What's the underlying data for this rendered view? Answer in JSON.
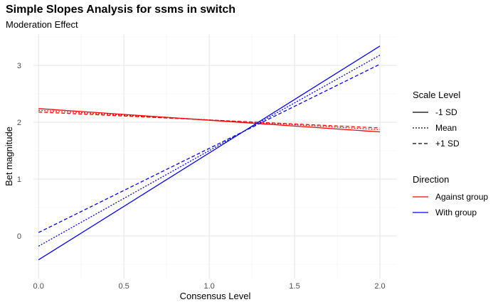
{
  "title": "Simple Slopes Analysis for ssms in switch",
  "subtitle": "Moderation Effect",
  "legend": {
    "linetype_title": "Scale Level",
    "linetype_items": [
      {
        "label": "-1 SD",
        "dash": "solid"
      },
      {
        "label": "Mean",
        "dash": "dotted"
      },
      {
        "label": "+1 SD",
        "dash": "dashed"
      }
    ],
    "color_title": "Direction",
    "color_items": [
      {
        "label": "Against group",
        "color": "#ff0000"
      },
      {
        "label": "With group",
        "color": "#0000ff"
      }
    ]
  },
  "chart_data": {
    "type": "line",
    "title": "Simple Slopes Analysis for ssms in switch",
    "subtitle": "Moderation Effect",
    "xlabel": "Consensus Level",
    "ylabel": "Bet magnitude",
    "xlim": [
      -0.03,
      2.1
    ],
    "ylim": [
      -0.75,
      3.55
    ],
    "x_ticks": [
      "0.0",
      "0.5",
      "1.0",
      "1.5",
      "2.0"
    ],
    "y_ticks": [
      "0",
      "1",
      "2",
      "3"
    ],
    "grid": true,
    "legend_position": "right",
    "series": [
      {
        "direction": "Against group",
        "level": "-1 SD",
        "color": "#ff0000",
        "dash": "solid",
        "x": [
          0,
          2
        ],
        "y": [
          2.24,
          1.83
        ]
      },
      {
        "direction": "Against group",
        "level": "Mean",
        "color": "#ff0000",
        "dash": "dotted",
        "x": [
          0,
          2
        ],
        "y": [
          2.21,
          1.87
        ]
      },
      {
        "direction": "Against group",
        "level": "+1 SD",
        "color": "#ff0000",
        "dash": "dashed",
        "x": [
          0,
          2
        ],
        "y": [
          2.18,
          1.9
        ]
      },
      {
        "direction": "With group",
        "level": "-1 SD",
        "color": "#0000ff",
        "dash": "solid",
        "x": [
          0,
          2
        ],
        "y": [
          -0.42,
          3.34
        ]
      },
      {
        "direction": "With group",
        "level": "Mean",
        "color": "#0000ff",
        "dash": "dotted",
        "x": [
          0,
          2
        ],
        "y": [
          -0.18,
          3.18
        ]
      },
      {
        "direction": "With group",
        "level": "+1 SD",
        "color": "#0000ff",
        "dash": "dashed",
        "x": [
          0,
          2
        ],
        "y": [
          0.06,
          3.02
        ]
      }
    ]
  }
}
